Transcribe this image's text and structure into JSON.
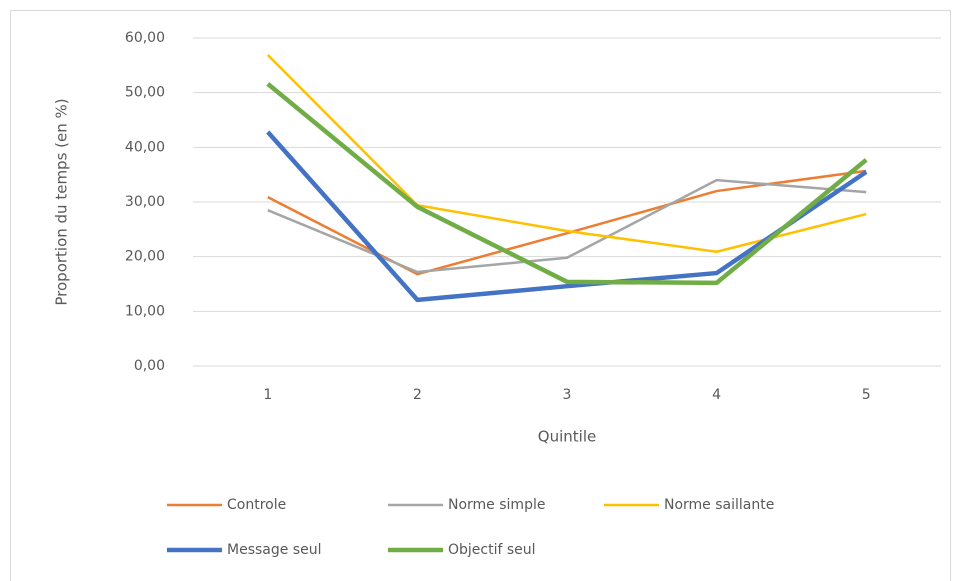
{
  "chart_data": {
    "type": "line",
    "xlabel": "Quintile",
    "ylabel": "Proportion du temps (en %)",
    "categories": [
      "1",
      "2",
      "3",
      "4",
      "5"
    ],
    "series": [
      {
        "name": "Controle",
        "color": "#ed7d31",
        "width": 2.5,
        "values": [
          30.9,
          16.8,
          24.3,
          32.0,
          35.7
        ]
      },
      {
        "name": "Norme simple",
        "color": "#a5a5a5",
        "width": 2.5,
        "values": [
          28.5,
          17.2,
          19.8,
          34.0,
          31.8
        ]
      },
      {
        "name": "Norme saillante",
        "color": "#ffc000",
        "width": 2.5,
        "values": [
          56.9,
          29.4,
          24.7,
          20.9,
          27.8
        ]
      },
      {
        "name": "Message seul",
        "color": "#4472c4",
        "width": 4.5,
        "values": [
          42.8,
          12.1,
          14.6,
          17.0,
          35.5
        ]
      },
      {
        "name": "Objectif seul",
        "color": "#70ad47",
        "width": 4.5,
        "values": [
          51.6,
          29.1,
          15.4,
          15.2,
          37.7
        ]
      }
    ],
    "ylim": [
      0,
      60
    ],
    "yticks": [
      {
        "value": 0,
        "label": "0,00"
      },
      {
        "value": 10,
        "label": "10,00"
      },
      {
        "value": 20,
        "label": "20,00"
      },
      {
        "value": 30,
        "label": "30,00"
      },
      {
        "value": 40,
        "label": "40,00"
      },
      {
        "value": 50,
        "label": "50,00"
      },
      {
        "value": 60,
        "label": "60,00"
      }
    ],
    "grid": true
  }
}
